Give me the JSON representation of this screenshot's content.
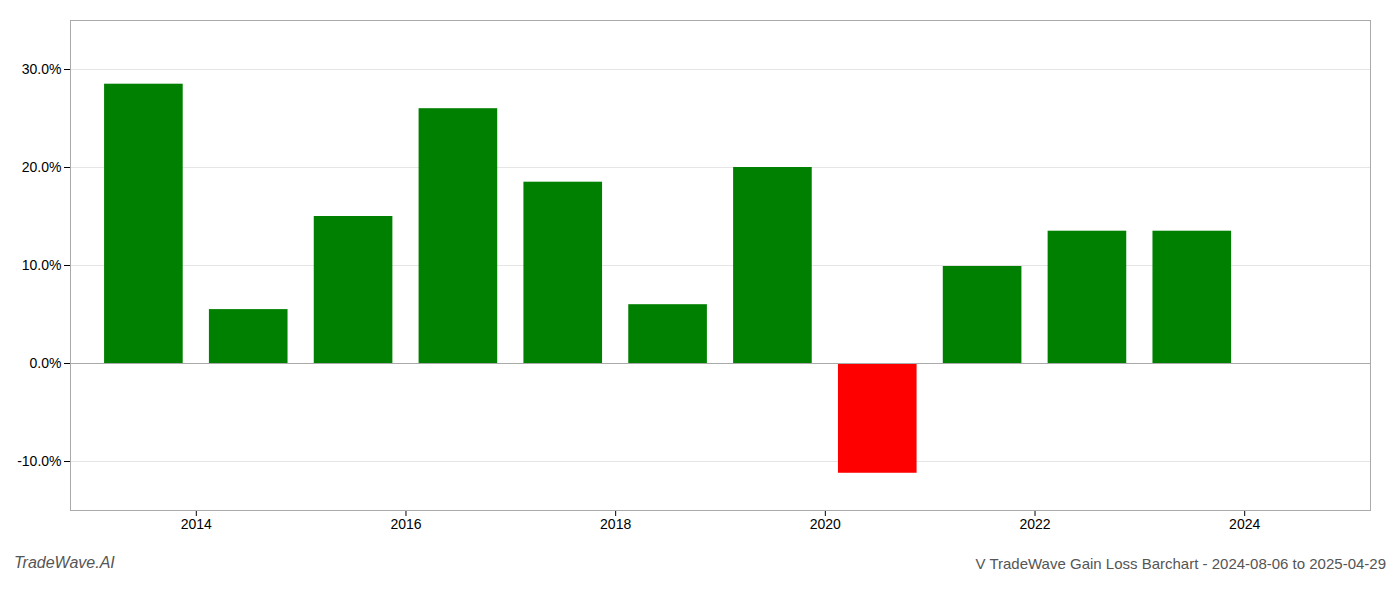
{
  "chart_data": {
    "type": "bar",
    "title": "V TradeWave Gain Loss Barchart - 2024-08-06 to 2025-04-29",
    "annotations": [
      "TradeWave.AI"
    ],
    "x": [
      2013.5,
      2014.5,
      2015.5,
      2016.5,
      2017.5,
      2018.5,
      2019.5,
      2020.5,
      2021.5,
      2022.5,
      2023.5
    ],
    "values": [
      0.285,
      0.055,
      0.15,
      0.26,
      0.185,
      0.06,
      0.2,
      -0.112,
      0.099,
      0.135,
      0.135
    ],
    "colors": [
      "#008000",
      "#008000",
      "#008000",
      "#008000",
      "#008000",
      "#008000",
      "#008000",
      "#ff0000",
      "#008000",
      "#008000",
      "#008000"
    ],
    "xlim": [
      2012.8,
      2025.2
    ],
    "xticks": [
      2014,
      2016,
      2018,
      2020,
      2022,
      2024
    ],
    "ylim": [
      -0.15,
      0.35
    ],
    "yticks": [
      {
        "value": -0.1,
        "label": "-10.0%"
      },
      {
        "value": 0.0,
        "label": "0.0%"
      },
      {
        "value": 0.1,
        "label": "10.0%"
      },
      {
        "value": 0.2,
        "label": "20.0%"
      },
      {
        "value": 0.3,
        "label": "30.0%"
      }
    ],
    "grid": true
  }
}
